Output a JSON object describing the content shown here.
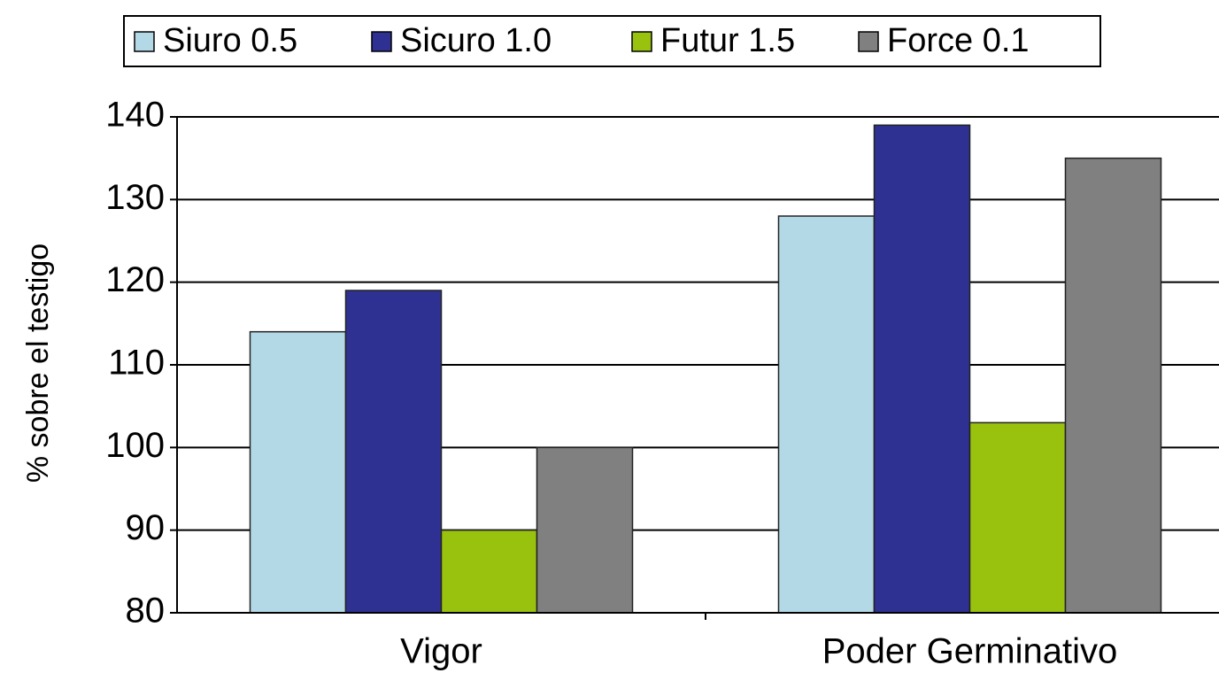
{
  "chart_data": {
    "type": "bar",
    "y_label": "% sobre el testigo",
    "categories": [
      "Vigor",
      "Poder Germinativo"
    ],
    "series": [
      {
        "name": "Siuro 0.5",
        "color": "#b4d9e6",
        "values": [
          114,
          128
        ]
      },
      {
        "name": "Sicuro 1.0",
        "color": "#2e3192",
        "values": [
          119,
          139
        ]
      },
      {
        "name": "Futur 1.5",
        "color": "#99c20e",
        "values": [
          90,
          103
        ]
      },
      {
        "name": "Force 0.1",
        "color": "#808080",
        "values": [
          100,
          135
        ]
      }
    ],
    "ylim": [
      80,
      140
    ],
    "yticks": [
      80,
      90,
      100,
      110,
      120,
      130,
      140
    ],
    "grid": true,
    "legend": "top"
  }
}
